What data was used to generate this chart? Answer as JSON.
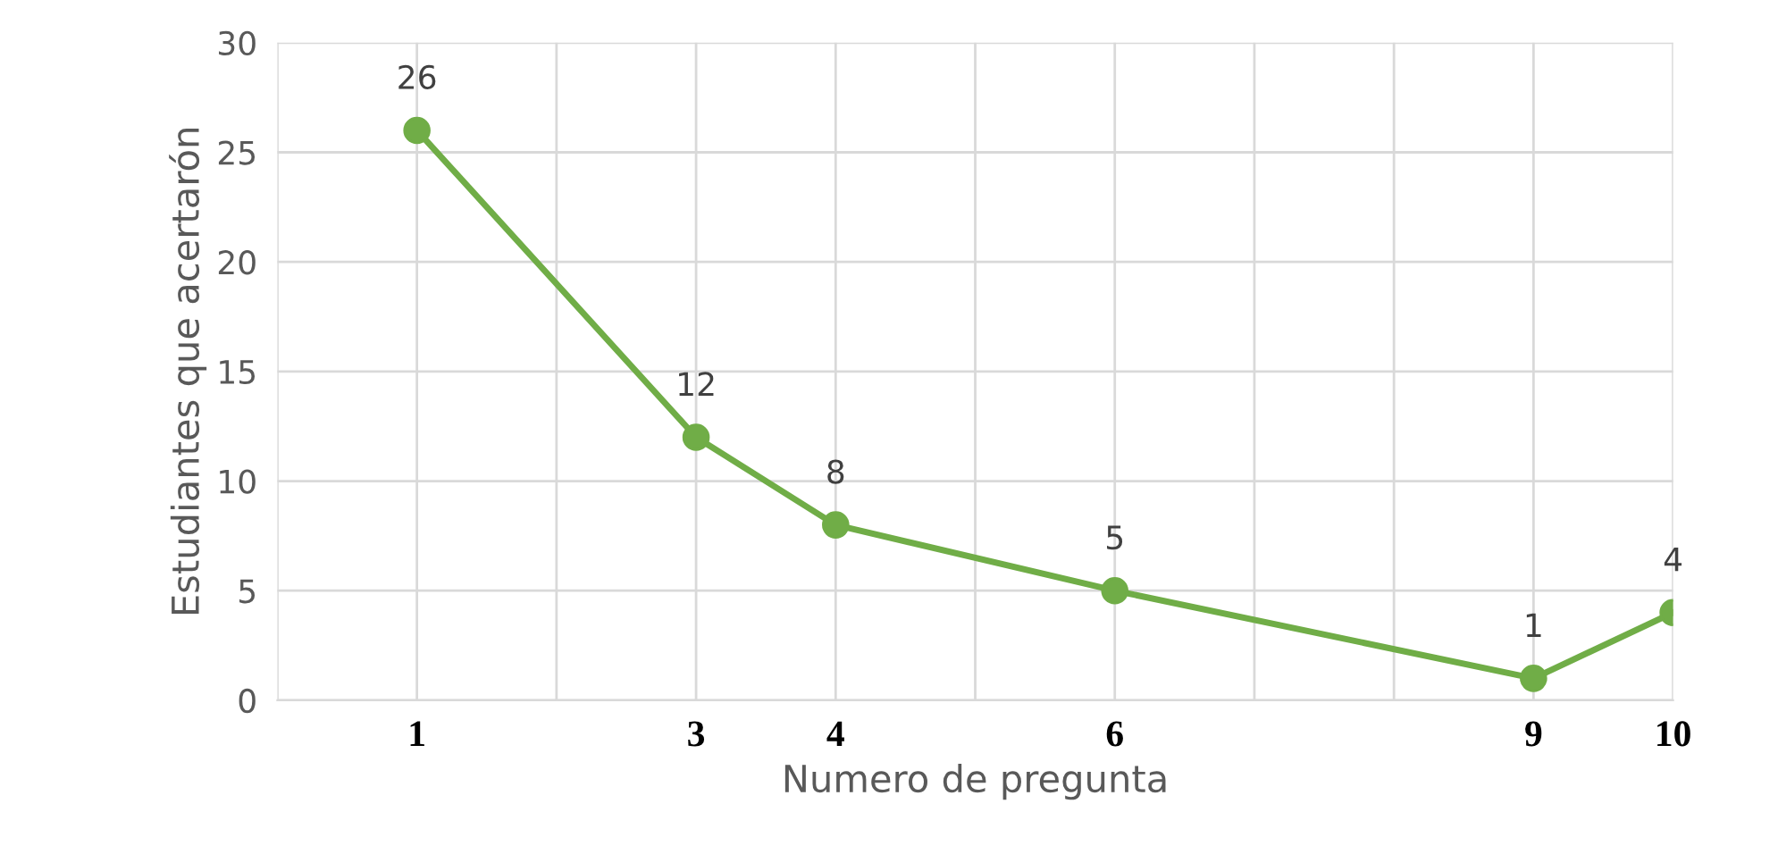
{
  "chart_data": {
    "type": "line",
    "xlabel": "Numero de pregunta",
    "ylabel": "Estudiantes que acertarón",
    "x": [
      1,
      3,
      4,
      6,
      9,
      10
    ],
    "series": [
      {
        "color": "#70ad47",
        "values": [
          26,
          12,
          8,
          5,
          1,
          4
        ]
      }
    ],
    "xlim": [
      0,
      10
    ],
    "xticks": [
      {
        "value": 0,
        "label": null
      },
      1,
      {
        "value": 2,
        "label": null
      },
      3,
      4,
      {
        "value": 5,
        "label": null
      },
      6,
      {
        "value": 7,
        "label": null
      },
      {
        "value": 8,
        "label": null
      },
      9,
      10
    ],
    "ylim": [
      0,
      30
    ],
    "yticks": [
      0,
      5,
      10,
      15,
      20,
      25,
      30
    ],
    "grid": true,
    "marker": "circle",
    "line_style": "solid",
    "data_labels": true
  }
}
